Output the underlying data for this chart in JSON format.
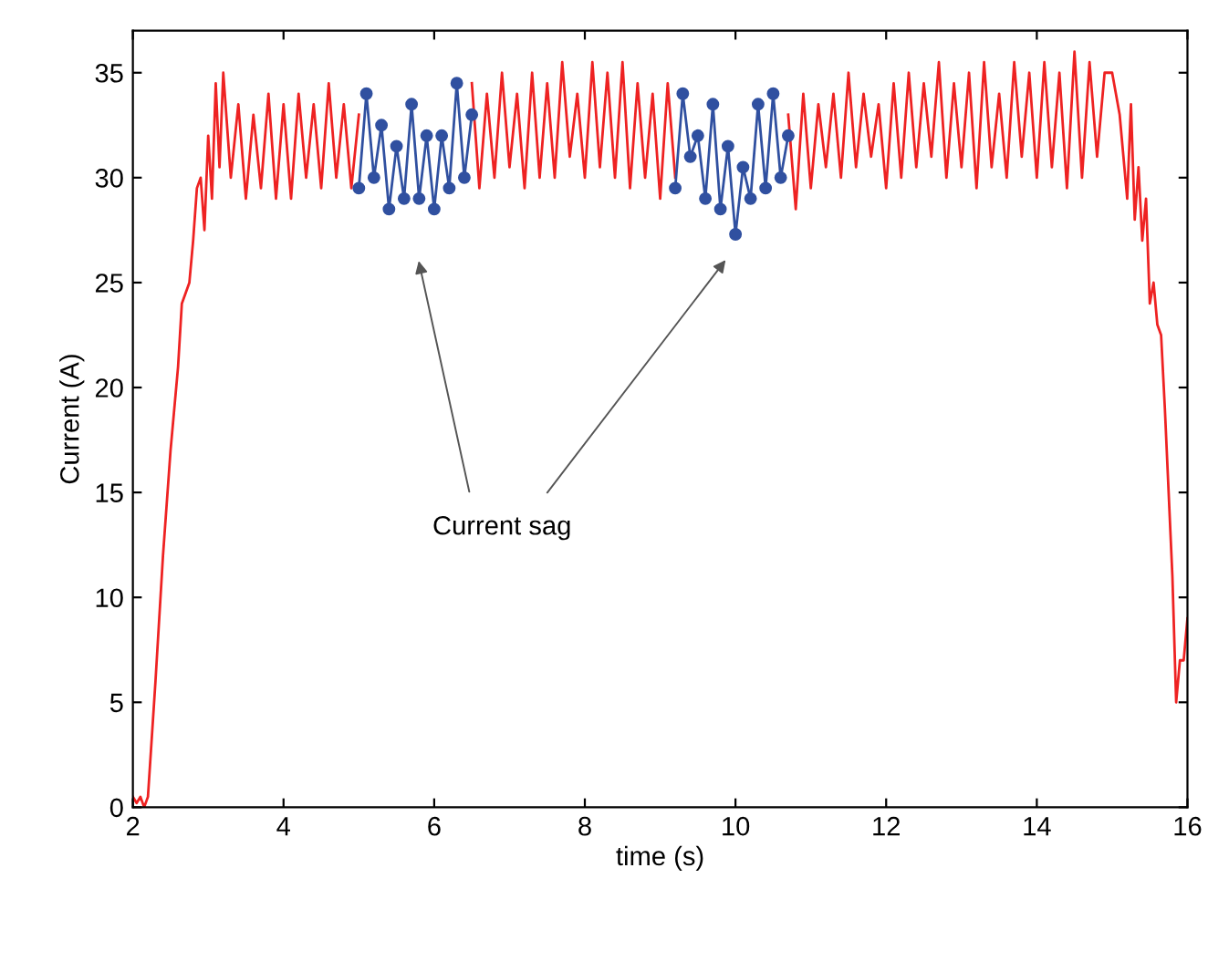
{
  "chart_data": {
    "type": "line",
    "xlabel": "time (s)",
    "ylabel": "Current (A)",
    "xlim": [
      2,
      16
    ],
    "ylim": [
      0,
      37
    ],
    "xticks": [
      2,
      4,
      6,
      8,
      10,
      12,
      14,
      16
    ],
    "yticks": [
      0,
      5,
      10,
      15,
      20,
      25,
      30,
      35
    ],
    "grid": false,
    "legend": false,
    "annotations": [
      "Current sag"
    ],
    "series": [
      {
        "color": "#ee2222",
        "marker": "none",
        "line_style": "solid",
        "x": [
          2.0,
          2.05,
          2.1,
          2.15,
          2.2,
          2.3,
          2.4,
          2.5,
          2.6,
          2.65,
          2.7,
          2.75,
          2.8,
          2.85,
          2.9,
          2.95,
          3.0,
          3.05,
          3.1,
          3.15,
          3.2,
          3.3,
          3.4,
          3.5,
          3.6,
          3.7,
          3.8,
          3.9,
          4.0,
          4.1,
          4.2,
          4.3,
          4.4,
          4.5,
          4.6,
          4.7,
          4.8,
          4.9,
          5.0,
          5.01,
          6.49,
          6.5,
          6.6,
          6.7,
          6.8,
          6.9,
          7.0,
          7.1,
          7.2,
          7.3,
          7.4,
          7.5,
          7.6,
          7.7,
          7.8,
          7.9,
          8.0,
          8.1,
          8.2,
          8.3,
          8.4,
          8.5,
          8.6,
          8.7,
          8.8,
          8.9,
          9.0,
          9.1,
          9.2,
          9.21,
          10.69,
          10.7,
          10.8,
          10.9,
          11.0,
          11.1,
          11.2,
          11.3,
          11.4,
          11.5,
          11.6,
          11.7,
          11.8,
          11.9,
          12.0,
          12.1,
          12.2,
          12.3,
          12.4,
          12.5,
          12.6,
          12.7,
          12.8,
          12.9,
          13.0,
          13.1,
          13.2,
          13.3,
          13.4,
          13.5,
          13.6,
          13.7,
          13.8,
          13.9,
          14.0,
          14.1,
          14.2,
          14.3,
          14.4,
          14.5,
          14.6,
          14.7,
          14.8,
          14.9,
          15.0,
          15.1,
          15.2,
          15.25,
          15.3,
          15.35,
          15.4,
          15.45,
          15.5,
          15.55,
          15.6,
          15.65,
          15.7,
          15.75,
          15.8,
          15.85,
          15.9,
          15.95,
          16.0
        ],
        "values": [
          0.5,
          0.2,
          0.5,
          0.0,
          0.5,
          6,
          12,
          17,
          21,
          24,
          24.5,
          25,
          27,
          29.5,
          30,
          27.5,
          32,
          29,
          34.5,
          30.5,
          35,
          30,
          33.5,
          29,
          33,
          29.5,
          34,
          29,
          33.5,
          29,
          34,
          30,
          33.5,
          29.5,
          34.5,
          30,
          33.5,
          29.5,
          33,
          null,
          null,
          34.5,
          29.5,
          34,
          30,
          35,
          30.5,
          34,
          29.5,
          35,
          30,
          34.5,
          30,
          35.5,
          31,
          34,
          30,
          35.5,
          30.5,
          35,
          30,
          35.5,
          29.5,
          34.5,
          30,
          34,
          29,
          34.5,
          30,
          null,
          null,
          33,
          28.5,
          34,
          29.5,
          33.5,
          30.5,
          34,
          30,
          35,
          30.5,
          34,
          31,
          33.5,
          29.5,
          34.5,
          30,
          35,
          30.5,
          34.5,
          31,
          35.5,
          30,
          34.5,
          30.5,
          35,
          29.5,
          35.5,
          30.5,
          34,
          30,
          35.5,
          31,
          35,
          30,
          35.5,
          30.5,
          35,
          29.5,
          36,
          30,
          35.5,
          31,
          35,
          35,
          33,
          29,
          33.5,
          28,
          30.5,
          27,
          29,
          24,
          25,
          23,
          22.5,
          19,
          15,
          11,
          5,
          7,
          7,
          9
        ]
      },
      {
        "color": "#3050a0",
        "marker": "circle",
        "line_style": "solid",
        "x": [
          5.0,
          5.1,
          5.2,
          5.3,
          5.4,
          5.5,
          5.6,
          5.7,
          5.8,
          5.9,
          6.0,
          6.1,
          6.2,
          6.3,
          6.4,
          6.5
        ],
        "values": [
          29.5,
          34,
          30,
          32.5,
          28.5,
          31.5,
          29,
          33.5,
          29,
          32,
          28.5,
          32,
          29.5,
          34.5,
          30,
          33
        ]
      },
      {
        "color": "#3050a0",
        "marker": "circle",
        "line_style": "solid",
        "x": [
          9.2,
          9.3,
          9.4,
          9.5,
          9.6,
          9.7,
          9.8,
          9.9,
          10.0,
          10.1,
          10.2,
          10.3,
          10.4,
          10.5,
          10.6,
          10.7
        ],
        "values": [
          29.5,
          34,
          31,
          32,
          29,
          33.5,
          28.5,
          31.5,
          27.3,
          30.5,
          29,
          33.5,
          29.5,
          34,
          30,
          32
        ]
      }
    ]
  }
}
